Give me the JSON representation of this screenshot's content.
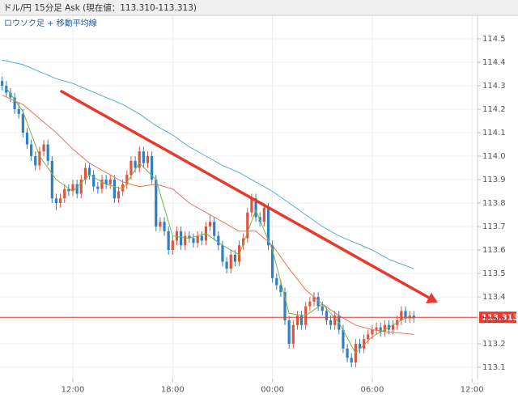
{
  "chart_data": {
    "type": "candlestick",
    "title": "ドル/円 15分足 Ask (現在値：113.310-113.313)",
    "subtitle": "ロウソク足 + 移動平均線",
    "x": [
      7.75,
      8,
      8.25,
      8.5,
      8.75,
      9,
      9.25,
      9.5,
      9.75,
      10,
      10.25,
      10.5,
      10.75,
      11,
      11.25,
      11.5,
      11.75,
      12,
      12.25,
      12.5,
      12.75,
      13,
      13.25,
      13.5,
      13.75,
      14,
      14.25,
      14.5,
      14.75,
      15,
      15.25,
      15.5,
      15.75,
      16,
      16.25,
      16.5,
      16.75,
      17,
      17.25,
      17.5,
      17.75,
      18,
      18.25,
      18.5,
      18.75,
      19,
      19.25,
      19.5,
      19.75,
      20,
      20.25,
      20.5,
      20.75,
      21,
      21.25,
      21.5,
      21.75,
      22,
      22.25,
      22.5,
      22.75,
      23,
      23.25,
      23.5,
      23.75,
      24,
      24.25,
      24.5,
      24.75,
      25,
      25.25,
      25.5,
      25.75,
      26,
      26.25,
      26.5,
      26.75,
      27,
      27.25,
      27.5,
      27.75,
      28,
      28.25,
      28.5,
      28.75,
      29,
      29.25,
      29.5,
      29.75,
      30,
      30.25,
      30.5,
      30.75,
      31,
      31.25,
      31.5,
      31.75,
      32,
      32.25,
      32.5
    ],
    "candles": [
      [
        114.32,
        114.34,
        114.28,
        114.3
      ],
      [
        114.3,
        114.32,
        114.25,
        114.27
      ],
      [
        114.27,
        114.29,
        114.23,
        114.25
      ],
      [
        114.25,
        114.27,
        114.18,
        114.2
      ],
      [
        114.2,
        114.23,
        114.16,
        114.18
      ],
      [
        114.18,
        114.2,
        114.08,
        114.1
      ],
      [
        114.1,
        114.12,
        114.03,
        114.05
      ],
      [
        114.05,
        114.07,
        113.98,
        114.0
      ],
      [
        114.0,
        114.02,
        113.94,
        113.96
      ],
      [
        113.96,
        114.04,
        113.94,
        114.02
      ],
      [
        114.02,
        114.07,
        114.0,
        114.05
      ],
      [
        114.05,
        114.07,
        113.96,
        113.98
      ],
      [
        113.98,
        114.0,
        113.8,
        113.82
      ],
      [
        113.82,
        113.84,
        113.77,
        113.8
      ],
      [
        113.8,
        113.84,
        113.78,
        113.82
      ],
      [
        113.82,
        113.88,
        113.8,
        113.86
      ],
      [
        113.86,
        113.88,
        113.83,
        113.85
      ],
      [
        113.85,
        113.9,
        113.83,
        113.88
      ],
      [
        113.88,
        113.9,
        113.82,
        113.84
      ],
      [
        113.84,
        113.92,
        113.82,
        113.9
      ],
      [
        113.9,
        113.97,
        113.88,
        113.95
      ],
      [
        113.95,
        113.97,
        113.9,
        113.92
      ],
      [
        113.92,
        113.94,
        113.85,
        113.87
      ],
      [
        113.87,
        113.89,
        113.84,
        113.86
      ],
      [
        113.86,
        113.92,
        113.84,
        113.9
      ],
      [
        113.9,
        113.92,
        113.86,
        113.88
      ],
      [
        113.88,
        113.92,
        113.86,
        113.9
      ],
      [
        113.9,
        113.92,
        113.8,
        113.82
      ],
      [
        113.82,
        113.87,
        113.8,
        113.85
      ],
      [
        113.85,
        113.9,
        113.83,
        113.88
      ],
      [
        113.88,
        113.94,
        113.86,
        113.92
      ],
      [
        113.92,
        114.0,
        113.9,
        113.98
      ],
      [
        113.98,
        114.0,
        113.93,
        113.95
      ],
      [
        113.95,
        114.04,
        113.93,
        114.02
      ],
      [
        114.02,
        114.04,
        113.95,
        113.97
      ],
      [
        113.97,
        114.02,
        113.95,
        114.0
      ],
      [
        114.0,
        114.02,
        113.88,
        113.9
      ],
      [
        113.9,
        113.92,
        113.68,
        113.7
      ],
      [
        113.7,
        113.74,
        113.68,
        113.72
      ],
      [
        113.72,
        113.74,
        113.66,
        113.68
      ],
      [
        113.68,
        113.7,
        113.58,
        113.6
      ],
      [
        113.6,
        113.66,
        113.58,
        113.64
      ],
      [
        113.64,
        113.7,
        113.62,
        113.68
      ],
      [
        113.68,
        113.7,
        113.6,
        113.62
      ],
      [
        113.62,
        113.68,
        113.6,
        113.66
      ],
      [
        113.66,
        113.68,
        113.63,
        113.65
      ],
      [
        113.65,
        113.67,
        113.61,
        113.63
      ],
      [
        113.63,
        113.68,
        113.61,
        113.66
      ],
      [
        113.66,
        113.68,
        113.62,
        113.64
      ],
      [
        113.64,
        113.72,
        113.62,
        113.7
      ],
      [
        113.7,
        113.75,
        113.68,
        113.72
      ],
      [
        113.72,
        113.74,
        113.64,
        113.66
      ],
      [
        113.66,
        113.68,
        113.6,
        113.62
      ],
      [
        113.62,
        113.64,
        113.53,
        113.55
      ],
      [
        113.55,
        113.57,
        113.5,
        113.52
      ],
      [
        113.52,
        113.6,
        113.5,
        113.58
      ],
      [
        113.58,
        113.6,
        113.53,
        113.55
      ],
      [
        113.55,
        113.64,
        113.53,
        113.62
      ],
      [
        113.62,
        113.67,
        113.6,
        113.65
      ],
      [
        113.65,
        113.78,
        113.63,
        113.76
      ],
      [
        113.76,
        113.84,
        113.74,
        113.82
      ],
      [
        113.82,
        113.84,
        113.72,
        113.74
      ],
      [
        113.74,
        113.76,
        113.7,
        113.72
      ],
      [
        113.72,
        113.8,
        113.7,
        113.78
      ],
      [
        113.78,
        113.8,
        113.6,
        113.62
      ],
      [
        113.62,
        113.64,
        113.46,
        113.48
      ],
      [
        113.48,
        113.5,
        113.43,
        113.45
      ],
      [
        113.45,
        113.47,
        113.4,
        113.42
      ],
      [
        113.42,
        113.44,
        113.28,
        113.3
      ],
      [
        113.3,
        113.32,
        113.18,
        113.2
      ],
      [
        113.2,
        113.3,
        113.18,
        113.28
      ],
      [
        113.28,
        113.34,
        113.26,
        113.32
      ],
      [
        113.32,
        113.34,
        113.26,
        113.28
      ],
      [
        113.28,
        113.38,
        113.26,
        113.36
      ],
      [
        113.36,
        113.4,
        113.34,
        113.38
      ],
      [
        113.38,
        113.42,
        113.36,
        113.4
      ],
      [
        113.4,
        113.42,
        113.34,
        113.36
      ],
      [
        113.36,
        113.38,
        113.32,
        113.34
      ],
      [
        113.34,
        113.36,
        113.28,
        113.3
      ],
      [
        113.3,
        113.32,
        113.26,
        113.28
      ],
      [
        113.28,
        113.34,
        113.26,
        113.32
      ],
      [
        113.32,
        113.34,
        113.24,
        113.26
      ],
      [
        113.26,
        113.28,
        113.16,
        113.18
      ],
      [
        113.18,
        113.2,
        113.12,
        113.14
      ],
      [
        113.14,
        113.16,
        113.1,
        113.12
      ],
      [
        113.12,
        113.22,
        113.1,
        113.2
      ],
      [
        113.2,
        113.22,
        113.16,
        113.18
      ],
      [
        113.18,
        113.24,
        113.16,
        113.22
      ],
      [
        113.22,
        113.26,
        113.2,
        113.24
      ],
      [
        113.24,
        113.28,
        113.22,
        113.26
      ],
      [
        113.26,
        113.29,
        113.24,
        113.27
      ],
      [
        113.27,
        113.29,
        113.23,
        113.25
      ],
      [
        113.25,
        113.3,
        113.23,
        113.28
      ],
      [
        113.28,
        113.3,
        113.24,
        113.26
      ],
      [
        113.26,
        113.3,
        113.24,
        113.28
      ],
      [
        113.28,
        113.32,
        113.26,
        113.3
      ],
      [
        113.3,
        113.36,
        113.28,
        113.34
      ],
      [
        113.34,
        113.36,
        113.29,
        113.31
      ],
      [
        113.31,
        113.34,
        113.29,
        113.32
      ],
      [
        113.32,
        113.34,
        113.29,
        113.31
      ]
    ],
    "up_color": "#e0533f",
    "down_color": "#2f7fc4",
    "series": [
      {
        "color": "#55aadd",
        "x": [
          7.75,
          9,
          10,
          11,
          12,
          13,
          14,
          15,
          16,
          17,
          18,
          19,
          20,
          21,
          22,
          23,
          24,
          25,
          26,
          27,
          28,
          29,
          30,
          31,
          32.5
        ],
        "values": [
          114.41,
          114.39,
          114.36,
          114.33,
          114.31,
          114.28,
          114.25,
          114.22,
          114.18,
          114.13,
          114.09,
          114.04,
          114.0,
          113.96,
          113.93,
          113.89,
          113.85,
          113.8,
          113.75,
          113.7,
          113.66,
          113.63,
          113.6,
          113.56,
          113.52
        ]
      },
      {
        "color": "#e8735a",
        "x": [
          7.75,
          9,
          10,
          11,
          12,
          13,
          14,
          15,
          16,
          17,
          18,
          19,
          20,
          21,
          22,
          23,
          24,
          25,
          26,
          27,
          28,
          29,
          30,
          31,
          32.5
        ],
        "values": [
          114.26,
          114.22,
          114.16,
          114.1,
          114.03,
          113.97,
          113.93,
          113.89,
          113.87,
          113.88,
          113.86,
          113.8,
          113.76,
          113.72,
          113.68,
          113.68,
          113.62,
          113.52,
          113.43,
          113.37,
          113.32,
          113.28,
          113.26,
          113.25,
          113.24
        ]
      },
      {
        "color": "#7cb342",
        "x": [
          8,
          9,
          10,
          11,
          12,
          13,
          14,
          15,
          16,
          17,
          18,
          19,
          20,
          21,
          22,
          23,
          24,
          25,
          26,
          27,
          28,
          29,
          30,
          31,
          32,
          32.5
        ],
        "values": [
          114.29,
          114.19,
          114.0,
          113.9,
          113.85,
          113.92,
          113.88,
          113.86,
          113.97,
          113.9,
          113.66,
          113.65,
          113.67,
          113.62,
          113.58,
          113.77,
          113.6,
          113.33,
          113.32,
          113.37,
          113.29,
          113.16,
          113.23,
          113.27,
          113.31,
          113.31
        ]
      }
    ],
    "current_price": 113.313,
    "current_price_color": "#e8392f",
    "xlim": [
      7.62,
      36.33
    ],
    "ylim": [
      113.05,
      114.6
    ],
    "xticks": [
      {
        "value": 12,
        "label": "12:00"
      },
      {
        "value": 18,
        "label": "18:00"
      },
      {
        "value": 24,
        "label": "00:00"
      },
      {
        "value": 30,
        "label": "06:00"
      },
      {
        "value": 36,
        "label": "12:00"
      }
    ],
    "yticks": [
      113.1,
      113.2,
      113.3,
      113.4,
      113.5,
      113.6,
      113.7,
      113.8,
      113.9,
      {
        "value": 114,
        "label": "114.0"
      },
      114.1,
      114.2,
      114.3,
      114.4,
      114.5
    ],
    "grid": true
  }
}
